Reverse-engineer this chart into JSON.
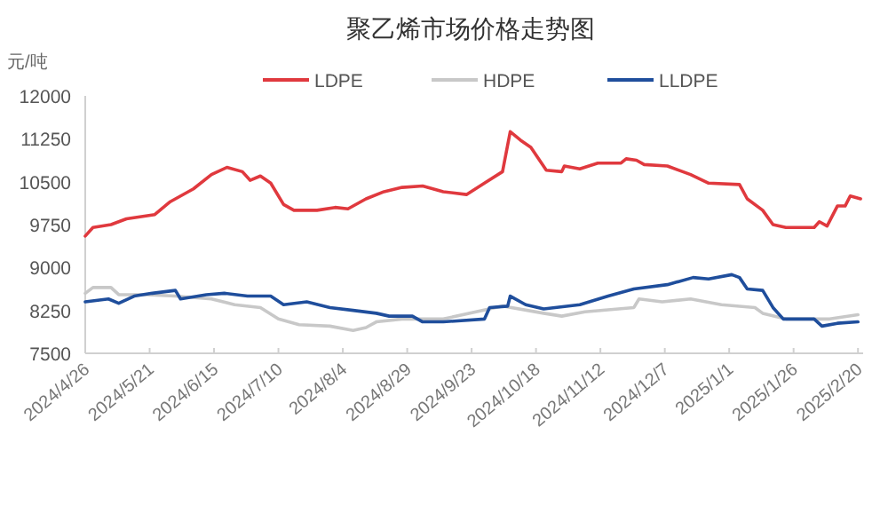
{
  "chart_data": {
    "type": "line",
    "title": "聚乙烯市场价格走势图",
    "ylabel": "元/吨",
    "legend": "top",
    "grid": false,
    "marker": "none",
    "line_style": "solid",
    "xlim": [
      "2024-04-26",
      "2025-02-22"
    ],
    "xticks": [
      {
        "value": "2024-04-26",
        "label": "2024/4/26"
      },
      {
        "value": "2024-05-21",
        "label": "2024/5/21"
      },
      {
        "value": "2024-06-15",
        "label": "2024/6/15"
      },
      {
        "value": "2024-07-10",
        "label": "2024/7/10"
      },
      {
        "value": "2024-08-04",
        "label": "2024/8/4"
      },
      {
        "value": "2024-08-29",
        "label": "2024/8/29"
      },
      {
        "value": "2024-09-23",
        "label": "2024/9/23"
      },
      {
        "value": "2024-10-18",
        "label": "2024/10/18"
      },
      {
        "value": "2024-11-12",
        "label": "2024/11/12"
      },
      {
        "value": "2024-12-07",
        "label": "2024/12/7"
      },
      {
        "value": "2025-01-01",
        "label": "2025/1/1"
      },
      {
        "value": "2025-01-26",
        "label": "2025/1/26"
      },
      {
        "value": "2025-02-20",
        "label": "2025/2/20"
      }
    ],
    "ylim": [
      7500,
      12000
    ],
    "yticks": [
      7500,
      8250,
      9000,
      9750,
      10500,
      11250,
      12000
    ],
    "series": [
      {
        "name": "LDPE",
        "color": "#e0393e",
        "x": [
          "2024-04-26",
          "2024-04-29",
          "2024-05-06",
          "2024-05-12",
          "2024-05-23",
          "2024-05-29",
          "2024-06-07",
          "2024-06-14",
          "2024-06-20",
          "2024-06-26",
          "2024-06-29",
          "2024-07-03",
          "2024-07-07",
          "2024-07-12",
          "2024-07-16",
          "2024-07-25",
          "2024-08-01",
          "2024-08-06",
          "2024-08-13",
          "2024-08-20",
          "2024-08-27",
          "2024-09-04",
          "2024-09-12",
          "2024-09-21",
          "2024-09-28",
          "2024-10-05",
          "2024-10-08",
          "2024-10-12",
          "2024-10-16",
          "2024-10-22",
          "2024-10-28",
          "2024-10-29",
          "2024-11-04",
          "2024-11-11",
          "2024-11-20",
          "2024-11-22",
          "2024-11-26",
          "2024-11-29",
          "2024-12-08",
          "2024-12-17",
          "2024-12-24",
          "2025-01-05",
          "2025-01-08",
          "2025-01-14",
          "2025-01-18",
          "2025-01-23",
          "2025-02-03",
          "2025-02-05",
          "2025-02-08",
          "2025-02-12",
          "2025-02-15",
          "2025-02-17",
          "2025-02-21"
        ],
        "values": [
          9550,
          9700,
          9750,
          9850,
          9925,
          10150,
          10375,
          10625,
          10750,
          10675,
          10525,
          10600,
          10475,
          10100,
          10000,
          10000,
          10050,
          10025,
          10200,
          10325,
          10400,
          10425,
          10325,
          10275,
          10475,
          10675,
          11375,
          11225,
          11100,
          10700,
          10675,
          10775,
          10725,
          10825,
          10825,
          10900,
          10875,
          10800,
          10775,
          10625,
          10475,
          10450,
          10200,
          10000,
          9750,
          9700,
          9700,
          9800,
          9725,
          10075,
          10075,
          10250,
          10200
        ]
      },
      {
        "name": "HDPE",
        "color": "#c8c8c8",
        "x": [
          "2024-04-26",
          "2024-04-29",
          "2024-05-06",
          "2024-05-09",
          "2024-05-20",
          "2024-05-31",
          "2024-06-14",
          "2024-06-23",
          "2024-07-03",
          "2024-07-10",
          "2024-07-18",
          "2024-07-30",
          "2024-08-08",
          "2024-08-13",
          "2024-08-17",
          "2024-08-27",
          "2024-09-12",
          "2024-10-05",
          "2024-10-21",
          "2024-10-28",
          "2024-11-06",
          "2024-11-25",
          "2024-11-27",
          "2024-12-06",
          "2024-12-17",
          "2024-12-29",
          "2025-01-11",
          "2025-01-14",
          "2025-01-23",
          "2025-02-05",
          "2025-02-09",
          "2025-02-20"
        ],
        "values": [
          8550,
          8650,
          8650,
          8525,
          8525,
          8500,
          8450,
          8350,
          8300,
          8100,
          8000,
          7975,
          7900,
          7950,
          8050,
          8100,
          8100,
          8325,
          8200,
          8150,
          8225,
          8300,
          8450,
          8400,
          8450,
          8350,
          8300,
          8200,
          8100,
          8100,
          8100,
          8175
        ]
      },
      {
        "name": "LLDPE",
        "color": "#1f4e9c",
        "x": [
          "2024-04-26",
          "2024-05-05",
          "2024-05-09",
          "2024-05-15",
          "2024-05-22",
          "2024-05-31",
          "2024-06-02",
          "2024-06-12",
          "2024-06-19",
          "2024-06-28",
          "2024-07-07",
          "2024-07-12",
          "2024-07-21",
          "2024-07-30",
          "2024-08-08",
          "2024-08-17",
          "2024-08-22",
          "2024-08-31",
          "2024-09-04",
          "2024-09-12",
          "2024-09-28",
          "2024-09-30",
          "2024-10-07",
          "2024-10-08",
          "2024-10-14",
          "2024-10-21",
          "2024-11-04",
          "2024-11-15",
          "2024-11-25",
          "2024-12-08",
          "2024-12-18",
          "2024-12-24",
          "2025-01-02",
          "2025-01-05",
          "2025-01-08",
          "2025-01-14",
          "2025-01-18",
          "2025-01-22",
          "2025-02-03",
          "2025-02-06",
          "2025-02-12",
          "2025-02-20"
        ],
        "values": [
          8400,
          8450,
          8375,
          8500,
          8550,
          8600,
          8450,
          8525,
          8550,
          8500,
          8500,
          8350,
          8400,
          8300,
          8250,
          8200,
          8150,
          8150,
          8050,
          8050,
          8100,
          8300,
          8325,
          8500,
          8350,
          8275,
          8350,
          8500,
          8625,
          8700,
          8825,
          8800,
          8875,
          8825,
          8625,
          8600,
          8300,
          8100,
          8100,
          7975,
          8025,
          8050
        ]
      }
    ]
  }
}
